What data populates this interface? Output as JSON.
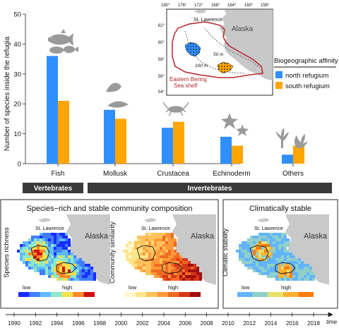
{
  "chart_data": {
    "type": "bar",
    "title": "",
    "ylabel": "Number of species inside the refugia",
    "ylim": [
      0,
      50
    ],
    "yticks": [
      0,
      10,
      20,
      30,
      40,
      50
    ],
    "categories": [
      "Fish",
      "Mollusk",
      "Crustacea",
      "Echinoderm",
      "Others"
    ],
    "series": [
      {
        "name": "north refugium",
        "color": "#2f8fff",
        "values": [
          36,
          18,
          12,
          9,
          3
        ]
      },
      {
        "name": "south refugium",
        "color": "#ffa500",
        "values": [
          21,
          15,
          14,
          6,
          6
        ]
      }
    ],
    "legend_title": "Biogeographic affinity",
    "legend_position": "right",
    "groups": [
      {
        "label": "Vertebrates"
      },
      {
        "label": "Invertebrates"
      }
    ]
  },
  "inset_map": {
    "lon_ticks": [
      "180°",
      "176°",
      "172°",
      "168°",
      "164°",
      "160°",
      "156°"
    ],
    "lat_ticks": [
      "62°",
      "60°",
      "58°",
      "56°",
      "54°"
    ],
    "labels": {
      "st_lawrence": "St. Lawrence",
      "alaska": "Alaska",
      "shelf": "Eastern Bering\nSea shelf",
      "shelf_line1": "Eastern Bering",
      "shelf_line2": "Sea shelf",
      "depth_50": "50 m",
      "depth_100": "100 m"
    }
  },
  "panels": {
    "left_title": "Species−rich and stable community composition",
    "right_title": "Climatically stable",
    "maps": [
      {
        "ylabel": "Species richness",
        "low": "low",
        "high": "high",
        "colors": [
          "#1a2cff",
          "#3f7fff",
          "#5fbcff",
          "#8fe8c8",
          "#f6e04a",
          "#ff8a2a",
          "#d01010"
        ]
      },
      {
        "ylabel": "Community similarity",
        "low": "low",
        "high": "high",
        "colors": [
          "#fff8d0",
          "#ffe48a",
          "#ffc25a",
          "#ff9a3a",
          "#f06a22",
          "#d83818",
          "#a01010"
        ]
      },
      {
        "ylabel": "Climatic stability",
        "low": "low",
        "high": "high",
        "colors": [
          "#62b4ff",
          "#8fd0c8",
          "#e8e06a",
          "#ffb030",
          "#ff7a10"
        ]
      }
    ],
    "map_labels": {
      "st_lawrence": "St. Lawrence",
      "alaska": "Alaska"
    }
  },
  "timeline": {
    "years": [
      "1990",
      "1992",
      "1994",
      "1996",
      "1998",
      "2000",
      "2002",
      "2004",
      "2006",
      "2008",
      "2010",
      "2012",
      "2014",
      "2016",
      "2018"
    ],
    "label": "time"
  }
}
